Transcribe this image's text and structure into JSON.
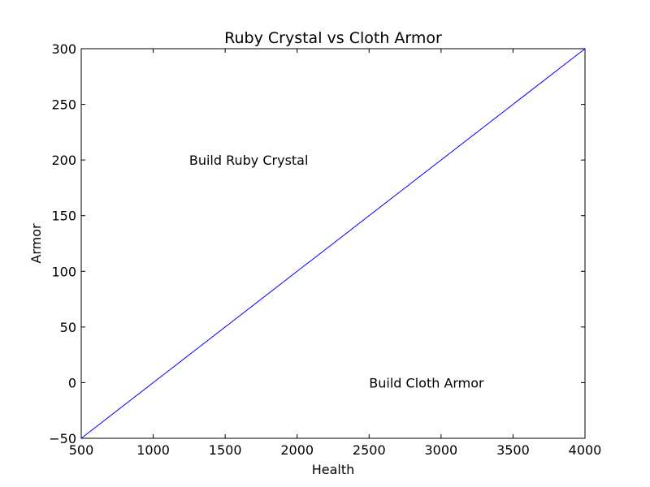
{
  "chart_data": {
    "type": "line",
    "title": "Ruby Crystal vs Cloth Armor",
    "xlabel": "Health",
    "ylabel": "Armor",
    "xlim": [
      500,
      4000
    ],
    "ylim": [
      -50,
      300
    ],
    "xticks": [
      500,
      1000,
      1500,
      2000,
      2500,
      3000,
      3500,
      4000
    ],
    "yticks": [
      -50,
      0,
      50,
      100,
      150,
      200,
      250,
      300
    ],
    "grid": false,
    "series": [
      {
        "x": [
          500,
          4000
        ],
        "y": [
          -50,
          300
        ],
        "color": "#0000ff"
      }
    ],
    "annotations": [
      {
        "text": "Build Ruby Crystal",
        "x": 1250,
        "y": 200
      },
      {
        "text": "Build Cloth Armor",
        "x": 2500,
        "y": 0
      }
    ]
  }
}
